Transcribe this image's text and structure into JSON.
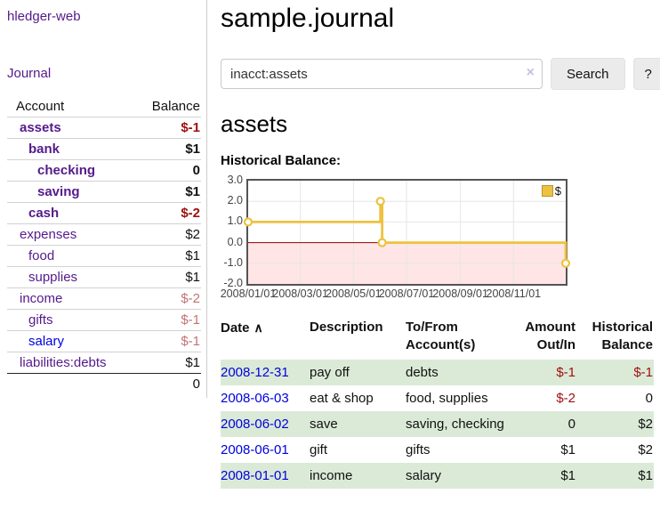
{
  "app": {
    "brand": "hledger-web"
  },
  "nav": {
    "journal": "Journal"
  },
  "sidebar": {
    "header": {
      "account": "Account",
      "balance": "Balance"
    },
    "accounts": [
      {
        "name": "assets",
        "balance": "$-1",
        "level": 1,
        "selected": true,
        "neg": "strong"
      },
      {
        "name": "bank",
        "balance": "$1",
        "level": 2,
        "selected": true
      },
      {
        "name": "checking",
        "balance": "0",
        "level": 3,
        "selected": true
      },
      {
        "name": "saving",
        "balance": "$1",
        "level": 3,
        "selected": true
      },
      {
        "name": "cash",
        "balance": "$-2",
        "level": 2,
        "selected": true,
        "neg": "strong"
      },
      {
        "name": "expenses",
        "balance": "$2",
        "level": 1
      },
      {
        "name": "food",
        "balance": "$1",
        "level": 2
      },
      {
        "name": "supplies",
        "balance": "$1",
        "level": 2
      },
      {
        "name": "income",
        "balance": "$-2",
        "level": 1,
        "neg": "soft"
      },
      {
        "name": "gifts",
        "balance": "$-1",
        "level": 2,
        "neg": "soft"
      },
      {
        "name": "salary",
        "balance": "$-1",
        "level": 2,
        "neg": "soft",
        "unvisited": true
      },
      {
        "name": "liabilities:debts",
        "balance": "$1",
        "level": 1
      }
    ],
    "total": "0"
  },
  "main": {
    "title": "sample.journal",
    "search": {
      "value": "inacct:assets",
      "clear_icon": "×",
      "search_button": "Search",
      "help_button": "?"
    },
    "account_heading": "assets",
    "chart_title": "Historical Balance:"
  },
  "chart_data": {
    "type": "line",
    "line_style": "steps",
    "title": "Historical Balance",
    "series": [
      {
        "name": "$",
        "color": "#EDC240",
        "points": [
          {
            "date": "2008-01-01",
            "value": 1.0
          },
          {
            "date": "2008-06-01",
            "value": 2.0
          },
          {
            "date": "2008-06-03",
            "value": 0.0
          },
          {
            "date": "2008-12-31",
            "value": -1.0
          }
        ]
      }
    ],
    "xlim": [
      "2008-01-01",
      "2008-12-31"
    ],
    "ylim": [
      -2,
      3
    ],
    "x_ticks": [
      {
        "date": "2008-01-01",
        "label": "2008/01/01"
      },
      {
        "date": "2008-03-01",
        "label": "2008/03/01"
      },
      {
        "date": "2008-05-01",
        "label": "2008/05/01"
      },
      {
        "date": "2008-07-01",
        "label": "2008/07/01"
      },
      {
        "date": "2008-09-01",
        "label": "2008/09/01"
      },
      {
        "date": "2008-11-01",
        "label": "2008/11/01"
      }
    ],
    "y_ticks": [
      {
        "value": 3,
        "label": "3.0"
      },
      {
        "value": 2,
        "label": "2.0"
      },
      {
        "value": 1,
        "label": "1.0"
      },
      {
        "value": 0,
        "label": "0.0"
      },
      {
        "value": -1,
        "label": "-1.0"
      },
      {
        "value": -2,
        "label": "-2.0"
      }
    ],
    "legend": {
      "label": "$",
      "position": "top-right",
      "swatch_color": "#EDC240"
    },
    "grid": true,
    "grid_color": "#e6e6e6",
    "negative_region_color": "rgba(255,0,0,0.10)",
    "zero_line_color": "#8b0000"
  },
  "register": {
    "headers": [
      {
        "label": "Date",
        "sort_icon": "∧",
        "sortable": true
      },
      {
        "label": "Description"
      },
      {
        "label": "To/From Account(s)"
      },
      {
        "label": "Amount Out/In",
        "align": "right"
      },
      {
        "label": "Historical Balance",
        "align": "right"
      }
    ],
    "rows": [
      {
        "date": "2008-12-31",
        "description": "pay off",
        "tofrom": "debts",
        "amount": "$-1",
        "balance": "$-1"
      },
      {
        "date": "2008-06-03",
        "description": "eat & shop",
        "tofrom": "food, supplies",
        "amount": "$-2",
        "balance": "0"
      },
      {
        "date": "2008-06-02",
        "description": "save",
        "tofrom": "saving, checking",
        "amount": "0",
        "balance": "$2"
      },
      {
        "date": "2008-06-01",
        "description": "gift",
        "tofrom": "gifts",
        "amount": "$1",
        "balance": "$2"
      },
      {
        "date": "2008-01-01",
        "description": "income",
        "tofrom": "salary",
        "amount": "$1",
        "balance": "$1"
      }
    ]
  }
}
